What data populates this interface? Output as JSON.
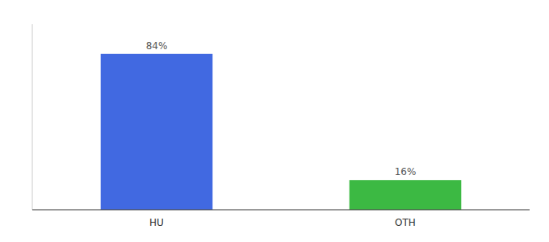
{
  "chart_data": {
    "type": "bar",
    "categories": [
      "HU",
      "OTH"
    ],
    "values": [
      84,
      16
    ],
    "colors": [
      "#4169E1",
      "#3CB943"
    ],
    "data_labels": true,
    "value_labels": [
      "84%",
      "16%"
    ],
    "ylim": [
      0,
      100
    ],
    "tick_labels": "x"
  }
}
